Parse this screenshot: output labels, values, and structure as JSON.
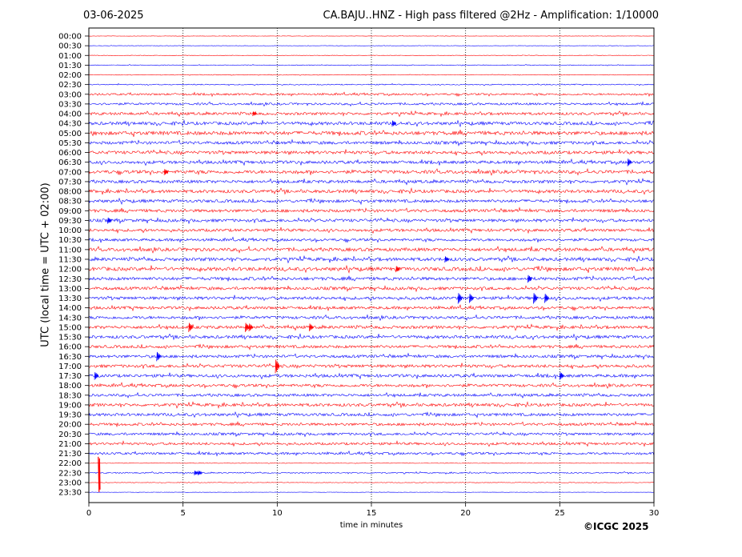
{
  "header": {
    "date": "03-06-2025",
    "title": "CA.BAJU..HNZ - High pass filtered @2Hz - Amplification: 1/10000"
  },
  "copyright": "©ICGC 2025",
  "colors": {
    "red_trace": "#ff0000",
    "blue_trace": "#0000ff",
    "grid": "#000000"
  },
  "chart_data": {
    "type": "line",
    "subtype": "helicorder",
    "xlabel": "time in minutes",
    "ylabel": "UTC (local time = UTC + 02:00)",
    "xlim": [
      0,
      30
    ],
    "x_ticks": [
      0,
      5,
      10,
      15,
      20,
      25,
      30
    ],
    "grid": "vertical dotted lines at 5-minute intervals",
    "row_labels": [
      "00:00",
      "00:30",
      "01:00",
      "01:30",
      "02:00",
      "02:30",
      "03:00",
      "03:30",
      "04:00",
      "04:30",
      "05:00",
      "05:30",
      "06:00",
      "06:30",
      "07:00",
      "07:30",
      "08:00",
      "08:30",
      "09:00",
      "09:30",
      "10:00",
      "10:30",
      "11:00",
      "11:30",
      "12:00",
      "12:30",
      "13:00",
      "13:30",
      "14:00",
      "14:30",
      "15:00",
      "15:30",
      "16:00",
      "16:30",
      "17:00",
      "17:30",
      "18:00",
      "18:30",
      "19:00",
      "19:30",
      "20:00",
      "20:30",
      "21:00",
      "21:30",
      "22:00",
      "22:30",
      "23:00",
      "23:30"
    ],
    "row_colors": [
      "red",
      "blue",
      "red",
      "blue",
      "red",
      "blue",
      "red",
      "blue",
      "red",
      "blue",
      "red",
      "blue",
      "red",
      "blue",
      "red",
      "blue",
      "red",
      "blue",
      "red",
      "blue",
      "red",
      "blue",
      "red",
      "blue",
      "red",
      "blue",
      "red",
      "blue",
      "red",
      "blue",
      "red",
      "blue",
      "red",
      "blue",
      "red",
      "blue",
      "red",
      "blue",
      "red",
      "blue",
      "red",
      "blue",
      "red",
      "blue",
      "red",
      "blue",
      "red",
      "blue"
    ],
    "row_noise": [
      0.2,
      0.2,
      0.3,
      0.4,
      0.4,
      0.6,
      1.2,
      1.3,
      1.6,
      1.9,
      2.2,
      1.8,
      1.9,
      1.8,
      2.0,
      1.8,
      1.9,
      1.8,
      1.8,
      1.8,
      1.7,
      1.6,
      2.0,
      2.0,
      2.2,
      1.9,
      1.8,
      1.8,
      1.7,
      1.7,
      1.8,
      1.8,
      1.7,
      1.7,
      1.8,
      1.8,
      1.7,
      1.6,
      1.8,
      1.7,
      1.6,
      1.5,
      1.5,
      1.4,
      0.3,
      0.7,
      0.3,
      0.2
    ],
    "row_end_minutes": [
      30,
      30,
      30,
      30,
      30,
      30,
      30,
      30,
      30,
      30,
      30,
      30,
      30,
      30,
      30,
      30,
      30,
      30,
      30,
      30,
      30,
      30,
      30,
      30,
      30,
      30,
      30,
      30,
      30,
      30,
      30,
      30,
      30,
      30,
      30,
      30,
      30,
      30,
      30,
      30,
      30,
      30,
      30,
      30,
      30,
      30,
      30,
      30
    ],
    "events": [
      {
        "row": 8,
        "minute": 8.7,
        "amp": 3
      },
      {
        "row": 9,
        "minute": 16.1,
        "amp": 4
      },
      {
        "row": 13,
        "minute": 28.6,
        "amp": 5
      },
      {
        "row": 14,
        "minute": 4.0,
        "amp": 4
      },
      {
        "row": 19,
        "minute": 1.0,
        "amp": 4
      },
      {
        "row": 23,
        "minute": 18.9,
        "amp": 4
      },
      {
        "row": 24,
        "minute": 16.3,
        "amp": 4
      },
      {
        "row": 25,
        "minute": 23.3,
        "amp": 5
      },
      {
        "row": 27,
        "minute": 19.6,
        "amp": 7
      },
      {
        "row": 27,
        "minute": 20.2,
        "amp": 6
      },
      {
        "row": 27,
        "minute": 23.6,
        "amp": 7
      },
      {
        "row": 27,
        "minute": 24.2,
        "amp": 6
      },
      {
        "row": 30,
        "minute": 5.3,
        "amp": 6
      },
      {
        "row": 30,
        "minute": 8.3,
        "amp": 6
      },
      {
        "row": 30,
        "minute": 8.5,
        "amp": 5
      },
      {
        "row": 30,
        "minute": 11.7,
        "amp": 5
      },
      {
        "row": 33,
        "minute": 3.6,
        "amp": 6
      },
      {
        "row": 34,
        "minute": 9.9,
        "amp": 9
      },
      {
        "row": 35,
        "minute": 0.3,
        "amp": 5
      },
      {
        "row": 35,
        "minute": 25.0,
        "amp": 5
      },
      {
        "row": 45,
        "minute": 5.6,
        "amp": 3
      },
      {
        "row": 45,
        "minute": 5.8,
        "amp": 3
      }
    ],
    "large_event": {
      "row": 44,
      "minute": 0.5,
      "top_amp": 8,
      "bottom_amp": 36
    }
  }
}
